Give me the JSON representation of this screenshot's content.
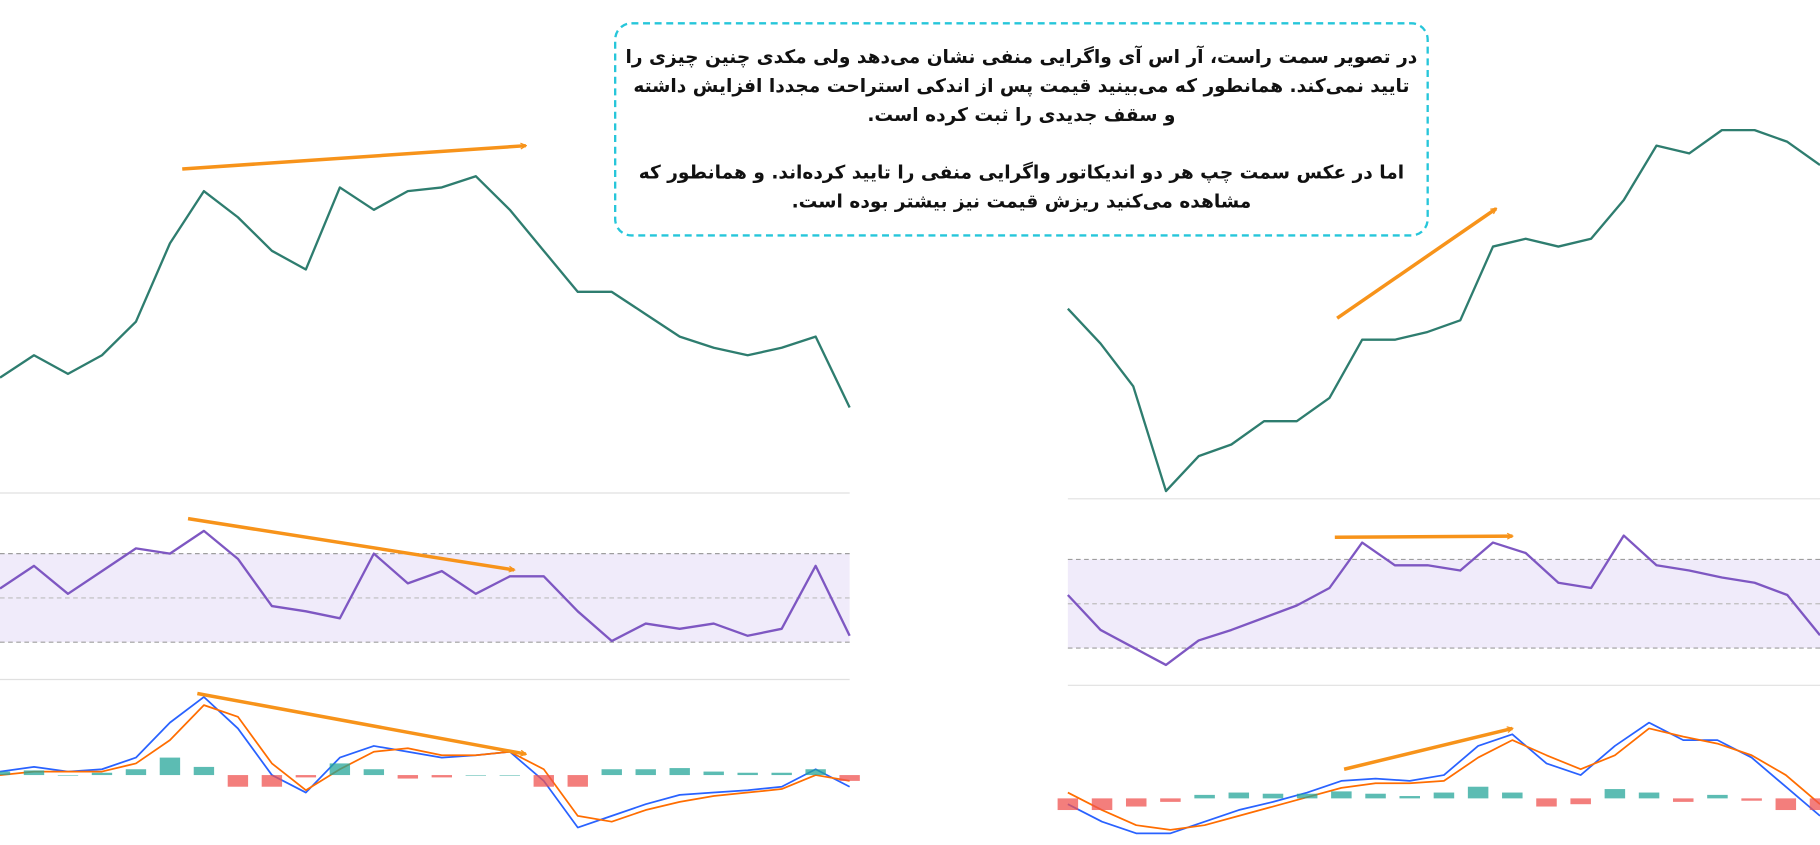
{
  "note": {
    "lines": [
      "در تصویر سمت راست، آر اس آی واگرایی منفی نشان می‌دهد ولی مکدی چنین چیزی را",
      "تایید نمی‌کند. همانطور که می‌بینید قیمت پس از اندکی استراحت  مجددا افزایش داشته",
      "و سقف جدیدی را ثبت کرده است.",
      "اما در عکس سمت چپ هر دو اندیکاتور واگرایی منفی را تایید کرده‌اند. و همانطور که",
      "مشاهده می‌کنید ریزش قیمت نیز بیشتر بوده است."
    ]
  },
  "chart_data": [
    {
      "type": "line",
      "color": "#2e7d6f",
      "ylim": [
        0,
        100
      ],
      "values": [
        30,
        36,
        31,
        36,
        45,
        66,
        80,
        73,
        64,
        59,
        81,
        75,
        80,
        81,
        84,
        75,
        64,
        53,
        53,
        47,
        41,
        38,
        36,
        38,
        41,
        22
      ]
    },
    {
      "type": "line",
      "color": "#7e57c2",
      "ylim": [
        0,
        100
      ],
      "values": [
        50,
        63,
        47,
        60,
        73,
        70,
        83,
        67,
        40,
        37,
        33,
        70,
        53,
        60,
        47,
        57,
        57,
        37,
        20,
        30,
        27,
        30,
        23,
        27,
        63,
        23
      ]
    },
    {
      "type": "line",
      "ylim": [
        -55,
        70
      ],
      "series": [
        {
          "color": "#2962ff",
          "values": [
            3,
            7,
            3,
            5,
            15,
            45,
            67,
            40,
            0,
            -15,
            15,
            25,
            20,
            15,
            17,
            20,
            -5,
            -45,
            -35,
            -25,
            -17,
            -15,
            -13,
            -10,
            5,
            -10
          ]
        },
        {
          "color": "#ff6d00",
          "values": [
            0,
            3,
            3,
            3,
            10,
            30,
            60,
            50,
            10,
            -13,
            5,
            20,
            23,
            17,
            17,
            20,
            5,
            -35,
            -40,
            -30,
            -23,
            -18,
            -15,
            -12,
            0,
            -5
          ]
        },
        {
          "type": "bar",
          "color": "#26a69a",
          "negative_color": "#ef5350",
          "values": [
            3,
            4,
            0,
            2,
            5,
            15,
            7,
            -10,
            -10,
            -2,
            10,
            5,
            -3,
            -2,
            0,
            0,
            -10,
            -10,
            5,
            5,
            6,
            3,
            2,
            2,
            5,
            -5
          ]
        }
      ]
    },
    {
      "type": "line",
      "color": "#2e7d6f",
      "ylim": [
        0,
        100
      ],
      "values": [
        49,
        40,
        29,
        2,
        11,
        14,
        20,
        20,
        26,
        41,
        41,
        43,
        46,
        65,
        67,
        65,
        67,
        77,
        91,
        89,
        95,
        95,
        92,
        86
      ]
    },
    {
      "type": "line",
      "color": "#7e57c2",
      "ylim": [
        0,
        100
      ],
      "values": [
        53,
        33,
        23,
        13,
        27,
        33,
        40,
        47,
        57,
        83,
        70,
        70,
        67,
        83,
        77,
        60,
        57,
        87,
        70,
        67,
        63,
        60,
        53,
        30
      ]
    },
    {
      "type": "line",
      "ylim": [
        -40,
        93
      ],
      "series": [
        {
          "color": "#2962ff",
          "values": [
            -5,
            -20,
            -30,
            -30,
            -20,
            -10,
            -3,
            5,
            15,
            17,
            15,
            20,
            45,
            55,
            30,
            20,
            45,
            65,
            50,
            50,
            35,
            10,
            -15
          ]
        },
        {
          "color": "#ff6d00",
          "values": [
            5,
            -10,
            -23,
            -27,
            -23,
            -15,
            -7,
            1,
            9,
            13,
            13,
            15,
            35,
            50,
            37,
            25,
            37,
            60,
            53,
            47,
            37,
            20,
            -5
          ]
        },
        {
          "type": "bar",
          "color": "#26a69a",
          "negative_color": "#ef5350",
          "values": [
            -10,
            -10,
            -7,
            -3,
            3,
            5,
            4,
            4,
            6,
            4,
            2,
            5,
            10,
            5,
            -7,
            -5,
            8,
            5,
            -3,
            3,
            -2,
            -10,
            -10
          ]
        }
      ]
    }
  ]
}
